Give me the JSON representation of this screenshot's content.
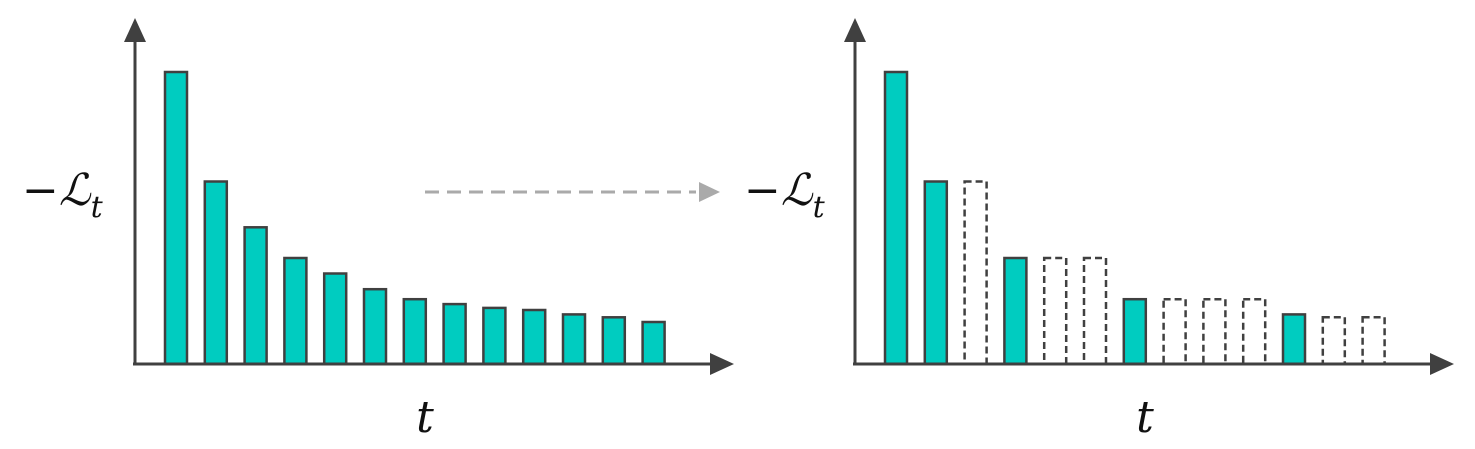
{
  "colors": {
    "bar_fill": "#00CCC0",
    "bar_stroke": "#404040",
    "axis": "#404040",
    "transition_arrow": "#AAAAAA"
  },
  "left_panel": {
    "ylabel_minus": "−",
    "ylabel_script": "ℒ",
    "ylabel_sub": "t",
    "xlabel": "t",
    "bars": [
      1.0,
      0.625,
      0.468,
      0.363,
      0.31,
      0.256,
      0.222,
      0.205,
      0.192,
      0.185,
      0.17,
      0.16,
      0.144
    ]
  },
  "right_panel": {
    "ylabel_minus": "−",
    "ylabel_script": "ℒ",
    "ylabel_sub": "t",
    "xlabel": "t",
    "bars": [
      {
        "value": 1.0,
        "kept": true
      },
      {
        "value": 0.625,
        "kept": true
      },
      {
        "value": 0.625,
        "kept": false
      },
      {
        "value": 0.363,
        "kept": true
      },
      {
        "value": 0.363,
        "kept": false
      },
      {
        "value": 0.363,
        "kept": false
      },
      {
        "value": 0.222,
        "kept": true
      },
      {
        "value": 0.222,
        "kept": false
      },
      {
        "value": 0.222,
        "kept": false
      },
      {
        "value": 0.222,
        "kept": false
      },
      {
        "value": 0.17,
        "kept": true
      },
      {
        "value": 0.16,
        "kept": false
      },
      {
        "value": 0.16,
        "kept": false
      }
    ]
  },
  "transition_arrow": {
    "style": "dashed",
    "direction": "right"
  }
}
